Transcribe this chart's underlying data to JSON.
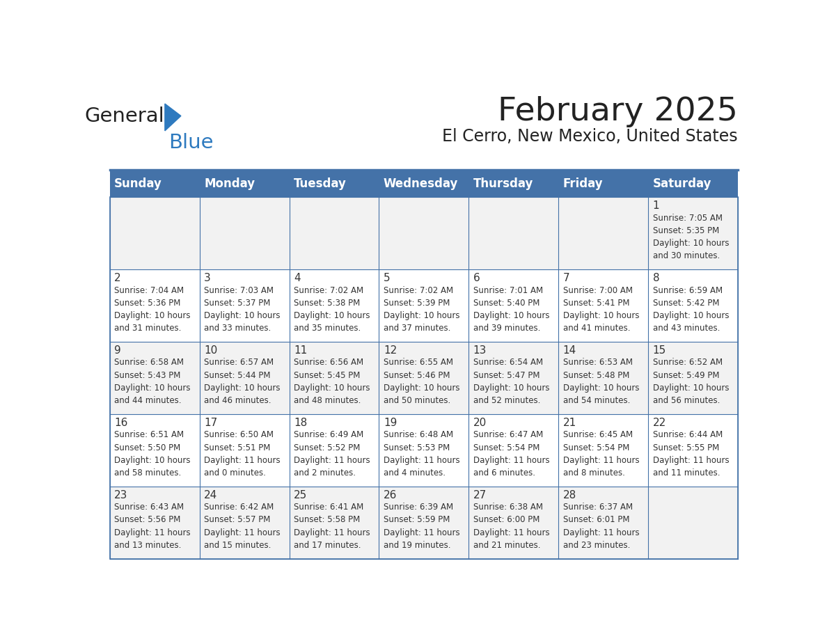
{
  "title": "February 2025",
  "subtitle": "El Cerro, New Mexico, United States",
  "days_of_week": [
    "Sunday",
    "Monday",
    "Tuesday",
    "Wednesday",
    "Thursday",
    "Friday",
    "Saturday"
  ],
  "header_bg": "#4472a8",
  "header_text": "#ffffff",
  "row_bg_odd": "#f2f2f2",
  "row_bg_even": "#ffffff",
  "border_color": "#4472a8",
  "day_number_color": "#333333",
  "text_color": "#333333",
  "title_color": "#222222",
  "logo_general_color": "#222222",
  "logo_blue_color": "#2e7abf",
  "calendar": [
    [
      null,
      null,
      null,
      null,
      null,
      null,
      {
        "day": 1,
        "sunrise": "7:05 AM",
        "sunset": "5:35 PM",
        "daylight": "10 hours and 30 minutes."
      }
    ],
    [
      {
        "day": 2,
        "sunrise": "7:04 AM",
        "sunset": "5:36 PM",
        "daylight": "10 hours and 31 minutes."
      },
      {
        "day": 3,
        "sunrise": "7:03 AM",
        "sunset": "5:37 PM",
        "daylight": "10 hours and 33 minutes."
      },
      {
        "day": 4,
        "sunrise": "7:02 AM",
        "sunset": "5:38 PM",
        "daylight": "10 hours and 35 minutes."
      },
      {
        "day": 5,
        "sunrise": "7:02 AM",
        "sunset": "5:39 PM",
        "daylight": "10 hours and 37 minutes."
      },
      {
        "day": 6,
        "sunrise": "7:01 AM",
        "sunset": "5:40 PM",
        "daylight": "10 hours and 39 minutes."
      },
      {
        "day": 7,
        "sunrise": "7:00 AM",
        "sunset": "5:41 PM",
        "daylight": "10 hours and 41 minutes."
      },
      {
        "day": 8,
        "sunrise": "6:59 AM",
        "sunset": "5:42 PM",
        "daylight": "10 hours and 43 minutes."
      }
    ],
    [
      {
        "day": 9,
        "sunrise": "6:58 AM",
        "sunset": "5:43 PM",
        "daylight": "10 hours and 44 minutes."
      },
      {
        "day": 10,
        "sunrise": "6:57 AM",
        "sunset": "5:44 PM",
        "daylight": "10 hours and 46 minutes."
      },
      {
        "day": 11,
        "sunrise": "6:56 AM",
        "sunset": "5:45 PM",
        "daylight": "10 hours and 48 minutes."
      },
      {
        "day": 12,
        "sunrise": "6:55 AM",
        "sunset": "5:46 PM",
        "daylight": "10 hours and 50 minutes."
      },
      {
        "day": 13,
        "sunrise": "6:54 AM",
        "sunset": "5:47 PM",
        "daylight": "10 hours and 52 minutes."
      },
      {
        "day": 14,
        "sunrise": "6:53 AM",
        "sunset": "5:48 PM",
        "daylight": "10 hours and 54 minutes."
      },
      {
        "day": 15,
        "sunrise": "6:52 AM",
        "sunset": "5:49 PM",
        "daylight": "10 hours and 56 minutes."
      }
    ],
    [
      {
        "day": 16,
        "sunrise": "6:51 AM",
        "sunset": "5:50 PM",
        "daylight": "10 hours and 58 minutes."
      },
      {
        "day": 17,
        "sunrise": "6:50 AM",
        "sunset": "5:51 PM",
        "daylight": "11 hours and 0 minutes."
      },
      {
        "day": 18,
        "sunrise": "6:49 AM",
        "sunset": "5:52 PM",
        "daylight": "11 hours and 2 minutes."
      },
      {
        "day": 19,
        "sunrise": "6:48 AM",
        "sunset": "5:53 PM",
        "daylight": "11 hours and 4 minutes."
      },
      {
        "day": 20,
        "sunrise": "6:47 AM",
        "sunset": "5:54 PM",
        "daylight": "11 hours and 6 minutes."
      },
      {
        "day": 21,
        "sunrise": "6:45 AM",
        "sunset": "5:54 PM",
        "daylight": "11 hours and 8 minutes."
      },
      {
        "day": 22,
        "sunrise": "6:44 AM",
        "sunset": "5:55 PM",
        "daylight": "11 hours and 11 minutes."
      }
    ],
    [
      {
        "day": 23,
        "sunrise": "6:43 AM",
        "sunset": "5:56 PM",
        "daylight": "11 hours and 13 minutes."
      },
      {
        "day": 24,
        "sunrise": "6:42 AM",
        "sunset": "5:57 PM",
        "daylight": "11 hours and 15 minutes."
      },
      {
        "day": 25,
        "sunrise": "6:41 AM",
        "sunset": "5:58 PM",
        "daylight": "11 hours and 17 minutes."
      },
      {
        "day": 26,
        "sunrise": "6:39 AM",
        "sunset": "5:59 PM",
        "daylight": "11 hours and 19 minutes."
      },
      {
        "day": 27,
        "sunrise": "6:38 AM",
        "sunset": "6:00 PM",
        "daylight": "11 hours and 21 minutes."
      },
      {
        "day": 28,
        "sunrise": "6:37 AM",
        "sunset": "6:01 PM",
        "daylight": "11 hours and 23 minutes."
      },
      null
    ]
  ]
}
